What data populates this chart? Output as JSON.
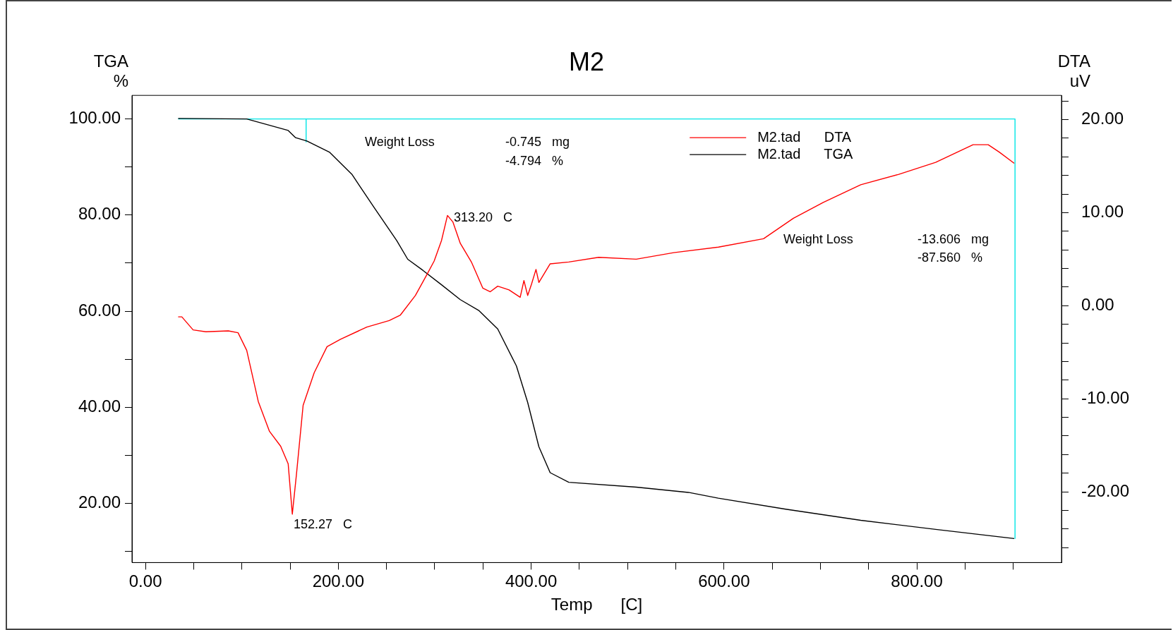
{
  "chart_data": {
    "type": "line",
    "title": "M2",
    "xlabel": "Temp      [C]",
    "ylabel": "TGA %",
    "y2label": "DTA uV",
    "xlim": [
      -14,
      950
    ],
    "ylim": [
      7.7,
      104.9
    ],
    "y2lim": [
      -27.6,
      22.6
    ],
    "xticks": [
      {
        "value": 0,
        "label": "0.00"
      },
      {
        "value": 50,
        "label": null
      },
      {
        "value": 100,
        "label": null
      },
      {
        "value": 150,
        "label": null
      },
      {
        "value": 200,
        "label": "200.00"
      },
      {
        "value": 250,
        "label": null
      },
      {
        "value": 300,
        "label": null
      },
      {
        "value": 350,
        "label": null
      },
      {
        "value": 400,
        "label": "400.00"
      },
      {
        "value": 450,
        "label": null
      },
      {
        "value": 500,
        "label": null
      },
      {
        "value": 550,
        "label": null
      },
      {
        "value": 600,
        "label": "600.00"
      },
      {
        "value": 650,
        "label": null
      },
      {
        "value": 700,
        "label": null
      },
      {
        "value": 750,
        "label": null
      },
      {
        "value": 800,
        "label": "800.00"
      },
      {
        "value": 850,
        "label": null
      },
      {
        "value": 900,
        "label": null
      }
    ],
    "yticks": [
      {
        "value": 10,
        "label": null
      },
      {
        "value": 20,
        "label": "20.00"
      },
      {
        "value": 30,
        "label": null
      },
      {
        "value": 40,
        "label": "40.00"
      },
      {
        "value": 50,
        "label": null
      },
      {
        "value": 60,
        "label": "60.00"
      },
      {
        "value": 70,
        "label": null
      },
      {
        "value": 80,
        "label": "80.00"
      },
      {
        "value": 90,
        "label": null
      },
      {
        "value": 100,
        "label": "100.00"
      }
    ],
    "y2ticks": [
      {
        "value": -26,
        "label": null
      },
      {
        "value": -24,
        "label": null
      },
      {
        "value": -22,
        "label": null
      },
      {
        "value": -20,
        "label": "-20.00"
      },
      {
        "value": -18,
        "label": null
      },
      {
        "value": -16,
        "label": null
      },
      {
        "value": -14,
        "label": null
      },
      {
        "value": -12,
        "label": null
      },
      {
        "value": -10,
        "label": "-10.00"
      },
      {
        "value": -8,
        "label": null
      },
      {
        "value": -6,
        "label": null
      },
      {
        "value": -4,
        "label": null
      },
      {
        "value": -2,
        "label": null
      },
      {
        "value": 0,
        "label": "0.00"
      },
      {
        "value": 2,
        "label": null
      },
      {
        "value": 4,
        "label": null
      },
      {
        "value": 6,
        "label": null
      },
      {
        "value": 8,
        "label": null
      },
      {
        "value": 10,
        "label": "10.00"
      },
      {
        "value": 12,
        "label": null
      },
      {
        "value": 14,
        "label": null
      },
      {
        "value": 16,
        "label": null
      },
      {
        "value": 18,
        "label": null
      },
      {
        "value": 20,
        "label": "20.00"
      },
      {
        "value": 22,
        "label": null
      }
    ],
    "legend": "top right",
    "series": [
      {
        "name": "M2.tad      DTA",
        "color": "#ff0000",
        "axis": "y2",
        "x": [
          33.9,
          37.7,
          49.4,
          62.6,
          85.9,
          96,
          105,
          117,
          128.6,
          140.2,
          148,
          152.27,
          156.5,
          163.5,
          175,
          188.3,
          202.3,
          229.5,
          252.8,
          264.4,
          279.9,
          291.6,
          299.4,
          307,
          313.2,
          318.8,
          326.5,
          338,
          349.8,
          357.6,
          365.3,
          377,
          388.6,
          392.5,
          396.4,
          400.3,
          405,
          408,
          419.7,
          439,
          470,
          509,
          547.8,
          594.3,
          641,
          672,
          703,
          741.8,
          780.7,
          819.5,
          858.3,
          874,
          885.5,
          901
        ],
        "values": [
          -1.2,
          -1.2,
          -2.6,
          -2.8,
          -2.7,
          -2.9,
          -4.8,
          -10.3,
          -13.5,
          -15.1,
          -17,
          -22.4,
          -18.2,
          -10.7,
          -7.2,
          -4.4,
          -3.6,
          -2.3,
          -1.6,
          -1,
          1.1,
          3.3,
          4.8,
          7,
          9.7,
          9,
          6.7,
          4.7,
          1.9,
          1.5,
          2.1,
          1.7,
          0.9,
          2.7,
          1.1,
          2.3,
          3.9,
          2.5,
          4.5,
          4.7,
          5.2,
          5,
          5.7,
          6.3,
          7.2,
          9.4,
          11.1,
          13,
          14.1,
          15.4,
          17.3,
          17.3,
          16.5,
          15.3
        ]
      },
      {
        "name": "M2.tad      TGA",
        "color": "#000000",
        "axis": "y",
        "x": [
          33.9,
          105,
          148,
          155.7,
          167.4,
          190.7,
          214,
          237,
          260.5,
          272,
          287.7,
          307,
          326.5,
          346,
          365.3,
          384.7,
          396.4,
          408,
          419.7,
          439,
          509,
          563,
          594,
          664,
          741.8,
          819.5,
          901
        ],
        "values": [
          100.1,
          100,
          97.6,
          96.1,
          95.4,
          93.1,
          88.5,
          81.6,
          74.7,
          70.8,
          68.5,
          65.5,
          62.4,
          60.1,
          56.3,
          48.6,
          41,
          31.8,
          26.4,
          24.4,
          23.4,
          22.3,
          21.1,
          18.8,
          16.5,
          14.6,
          12.7
        ]
      },
      {
        "color": "#00e5e5",
        "axis": "y",
        "x": [
          33.9,
          166.6,
          166.6
        ],
        "values": [
          100,
          100,
          95.2
        ]
      },
      {
        "color": "#00e5e5",
        "axis": "y",
        "x": [
          166.6,
          901.8,
          901.8
        ],
        "values": [
          100,
          100,
          12.7
        ]
      }
    ],
    "annotations": [
      "Weight Loss",
      "-0.745   mg",
      "-4.794   %",
      "Weight Loss",
      "-13.606   mg",
      "-87.560   %",
      "313.20   C",
      "152.27   C"
    ]
  }
}
